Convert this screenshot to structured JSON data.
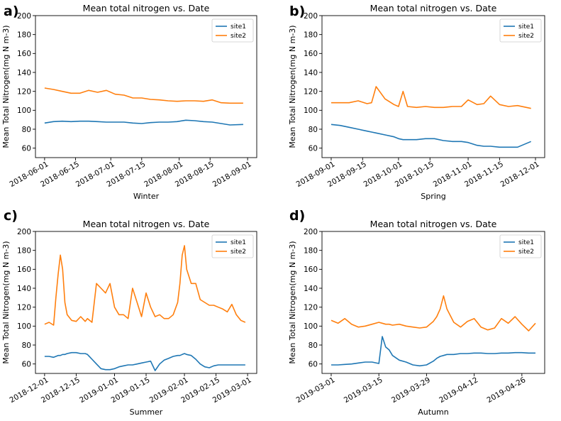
{
  "chart_data": [
    {
      "type": "line",
      "panel_label": "a)",
      "title": "Mean total nitrogen vs. Date",
      "xlabel": "Winter",
      "ylabel": "Mean Total Nitrogen(mg N m-3)",
      "x_ticks": [
        "2018-06-01",
        "2018-06-15",
        "2018-07-01",
        "2018-07-15",
        "2018-08-01",
        "2018-08-15",
        "2018-09-01"
      ],
      "ylim": [
        50,
        200
      ],
      "y_ticks": [
        60,
        80,
        100,
        120,
        140,
        160,
        180,
        200
      ],
      "legend": "top-right",
      "grid": false,
      "x": [
        "2018-06-01",
        "2018-06-05",
        "2018-06-09",
        "2018-06-13",
        "2018-06-17",
        "2018-06-21",
        "2018-06-25",
        "2018-06-29",
        "2018-07-03",
        "2018-07-07",
        "2018-07-11",
        "2018-07-15",
        "2018-07-19",
        "2018-07-23",
        "2018-07-27",
        "2018-07-31",
        "2018-08-04",
        "2018-08-08",
        "2018-08-12",
        "2018-08-16",
        "2018-08-20",
        "2018-08-24",
        "2018-08-30"
      ],
      "series": [
        {
          "name": "site1",
          "color": "#1f77b4",
          "values": [
            86.5,
            88,
            88.5,
            88,
            88.5,
            88.5,
            88,
            87.5,
            87.5,
            87.5,
            86.5,
            86,
            87,
            87.5,
            87.5,
            88,
            89.5,
            89,
            88,
            87.5,
            86,
            84.5,
            85
          ]
        },
        {
          "name": "site2",
          "color": "#ff7f0e",
          "values": [
            123.5,
            122,
            120,
            118,
            118,
            121,
            119,
            121,
            117,
            116,
            113,
            113,
            111.5,
            111,
            110,
            109.5,
            110,
            110,
            109.5,
            111,
            108,
            107.5,
            107.5
          ]
        }
      ]
    },
    {
      "type": "line",
      "panel_label": "b)",
      "title": "Mean total nitrogen vs. Date",
      "xlabel": "Spring",
      "ylabel": "Mean Total Nitrogen(mg N m-3)",
      "x_ticks": [
        "2018-09-01",
        "2018-09-15",
        "2018-10-01",
        "2018-10-15",
        "2018-11-01",
        "2018-11-15",
        "2018-12-01"
      ],
      "ylim": [
        50,
        200
      ],
      "y_ticks": [
        60,
        80,
        100,
        120,
        140,
        160,
        180,
        200
      ],
      "legend": "top-right",
      "grid": false,
      "x": [
        "2018-09-01",
        "2018-09-05",
        "2018-09-09",
        "2018-09-13",
        "2018-09-17",
        "2018-09-19",
        "2018-09-21",
        "2018-09-25",
        "2018-09-29",
        "2018-10-01",
        "2018-10-03",
        "2018-10-05",
        "2018-10-09",
        "2018-10-13",
        "2018-10-17",
        "2018-10-21",
        "2018-10-25",
        "2018-10-29",
        "2018-11-01",
        "2018-11-05",
        "2018-11-08",
        "2018-11-11",
        "2018-11-15",
        "2018-11-19",
        "2018-11-23",
        "2018-11-29"
      ],
      "series": [
        {
          "name": "site1",
          "color": "#1f77b4",
          "values": [
            85,
            84,
            82,
            80,
            78,
            77,
            76,
            74,
            72,
            70,
            69,
            69,
            69,
            70,
            70,
            68,
            67,
            67,
            66,
            63,
            62,
            62,
            61,
            61,
            61,
            67
          ]
        },
        {
          "name": "site2",
          "color": "#ff7f0e",
          "values": [
            108,
            108,
            108,
            110,
            107,
            108,
            125,
            112,
            106,
            104,
            120,
            104,
            103,
            104,
            103,
            103,
            104,
            104,
            111,
            106,
            107,
            115,
            106,
            104,
            105,
            102
          ]
        }
      ]
    },
    {
      "type": "line",
      "panel_label": "c)",
      "title": "Mean total nitrogen vs. Date",
      "xlabel": "Summer",
      "ylabel": "Mean Total Nitrogen(mg N m-3)",
      "x_ticks": [
        "2018-12-01",
        "2018-12-15",
        "2019-01-01",
        "2019-01-15",
        "2019-02-01",
        "2019-02-15",
        "2019-03-01"
      ],
      "ylim": [
        50,
        200
      ],
      "y_ticks": [
        60,
        80,
        100,
        120,
        140,
        160,
        180,
        200
      ],
      "legend": "top-right",
      "grid": false,
      "x": [
        "2018-12-01",
        "2018-12-03",
        "2018-12-05",
        "2018-12-06",
        "2018-12-07",
        "2018-12-08",
        "2018-12-09",
        "2018-12-10",
        "2018-12-11",
        "2018-12-13",
        "2018-12-15",
        "2018-12-17",
        "2018-12-19",
        "2018-12-20",
        "2018-12-22",
        "2018-12-24",
        "2018-12-26",
        "2018-12-28",
        "2018-12-30",
        "2019-01-01",
        "2019-01-03",
        "2019-01-05",
        "2019-01-07",
        "2019-01-09",
        "2019-01-11",
        "2019-01-13",
        "2019-01-15",
        "2019-01-17",
        "2019-01-19",
        "2019-01-21",
        "2019-01-23",
        "2019-01-25",
        "2019-01-27",
        "2019-01-29",
        "2019-01-30",
        "2019-01-31",
        "2019-02-01",
        "2019-02-02",
        "2019-02-04",
        "2019-02-06",
        "2019-02-08",
        "2019-02-10",
        "2019-02-12",
        "2019-02-14",
        "2019-02-16",
        "2019-02-18",
        "2019-02-20",
        "2019-02-22",
        "2019-02-24",
        "2019-02-26",
        "2019-02-28"
      ],
      "series": [
        {
          "name": "site1",
          "color": "#1f77b4",
          "values": [
            68,
            68,
            67,
            68,
            69,
            69,
            70,
            70,
            71,
            72,
            72,
            71,
            71,
            70,
            65,
            60,
            55,
            54,
            54,
            55,
            57,
            58,
            59,
            59,
            60,
            61,
            62,
            63,
            53,
            60,
            64,
            66,
            68,
            69,
            69,
            70,
            71,
            70,
            69,
            65,
            60,
            57,
            56,
            58,
            59,
            59,
            59,
            59,
            59,
            59,
            59
          ]
        },
        {
          "name": "site2",
          "color": "#ff7f0e",
          "values": [
            102,
            104,
            101,
            130,
            155,
            175,
            160,
            125,
            112,
            106,
            105,
            110,
            105,
            108,
            104,
            145,
            140,
            135,
            145,
            120,
            112,
            112,
            108,
            140,
            125,
            110,
            135,
            120,
            110,
            112,
            108,
            108,
            112,
            125,
            145,
            175,
            185,
            160,
            145,
            145,
            128,
            125,
            122,
            122,
            120,
            118,
            115,
            123,
            112,
            106,
            104
          ]
        }
      ]
    },
    {
      "type": "line",
      "panel_label": "d)",
      "title": "Mean total nitrogen vs. Date",
      "xlabel": "Autumn",
      "ylabel": "Mean Total Nitrogen(mg N m-3)",
      "x_ticks": [
        "2019-03-01",
        "2019-03-15",
        "2019-03-29",
        "2019-04-12",
        "2019-04-26"
      ],
      "ylim": [
        50,
        200
      ],
      "y_ticks": [
        60,
        80,
        100,
        120,
        140,
        160,
        180,
        200
      ],
      "legend": "top-right",
      "grid": false,
      "x": [
        "2019-03-01",
        "2019-03-03",
        "2019-03-05",
        "2019-03-07",
        "2019-03-09",
        "2019-03-11",
        "2019-03-13",
        "2019-03-15",
        "2019-03-16",
        "2019-03-17",
        "2019-03-18",
        "2019-03-19",
        "2019-03-21",
        "2019-03-23",
        "2019-03-25",
        "2019-03-27",
        "2019-03-29",
        "2019-03-31",
        "2019-04-01",
        "2019-04-02",
        "2019-04-03",
        "2019-04-04",
        "2019-04-06",
        "2019-04-08",
        "2019-04-10",
        "2019-04-12",
        "2019-04-14",
        "2019-04-16",
        "2019-04-18",
        "2019-04-20",
        "2019-04-22",
        "2019-04-24",
        "2019-04-26",
        "2019-04-28",
        "2019-04-30"
      ],
      "series": [
        {
          "name": "site1",
          "color": "#1f77b4",
          "values": [
            59,
            59,
            59.5,
            60,
            61,
            62,
            62,
            60.5,
            89,
            78,
            75,
            69,
            64,
            62,
            59,
            58,
            59,
            63,
            66,
            68,
            69,
            70,
            70,
            71,
            71,
            71.5,
            71.5,
            71,
            71,
            71.5,
            71.5,
            72,
            72,
            71.5,
            71.5
          ]
        },
        {
          "name": "site2",
          "color": "#ff7f0e",
          "values": [
            106,
            103,
            108,
            102,
            99,
            100,
            102,
            104,
            103,
            102,
            102,
            101,
            102,
            100,
            99,
            98,
            99,
            105,
            110,
            118,
            132,
            118,
            104,
            99,
            105,
            108,
            99,
            96,
            98,
            108,
            103,
            110,
            102,
            95,
            103
          ]
        }
      ]
    }
  ]
}
